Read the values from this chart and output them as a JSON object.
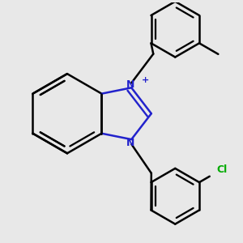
{
  "background_color": "#e8e8e8",
  "bond_color": "#000000",
  "n_color": "#2222cc",
  "cl_color": "#00aa00",
  "bond_width": 1.8,
  "figsize": [
    3.0,
    3.0
  ],
  "dpi": 100,
  "xlim": [
    -2.5,
    3.5
  ],
  "ylim": [
    -3.2,
    2.8
  ]
}
